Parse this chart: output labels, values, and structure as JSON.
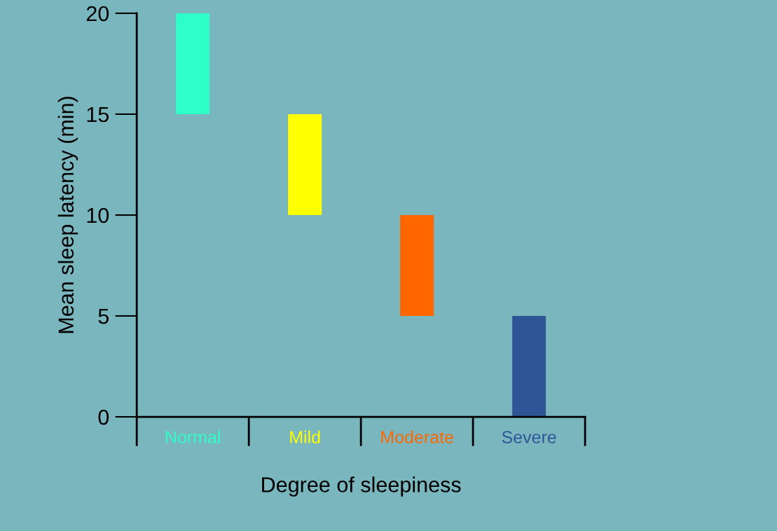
{
  "chart_data": {
    "type": "bar",
    "xlabel": "Degree of sleepiness",
    "ylabel": "Mean sleep latency (min)",
    "categories": [
      "Normal",
      "Mild",
      "Moderate",
      "Severe"
    ],
    "values": [
      5,
      5,
      5,
      5
    ],
    "base": [
      15,
      10,
      5,
      0
    ],
    "colors": [
      "#2effc8",
      "#ffff00",
      "#ff6600",
      "#2f5597"
    ],
    "ylim": [
      0,
      20
    ],
    "yticks": [
      0,
      5,
      10,
      15,
      20
    ],
    "grid": false,
    "legend": false
  }
}
